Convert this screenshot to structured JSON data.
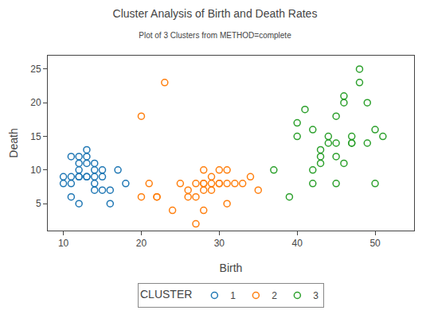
{
  "chart_data": {
    "type": "scatter",
    "title": "Cluster Analysis of Birth and Death Rates",
    "subtitle": "Plot of 3 Clusters from METHOD=complete",
    "xlabel": "Birth",
    "ylabel": "Death",
    "xlim": [
      8,
      55
    ],
    "ylim": [
      1,
      27
    ],
    "xticks": [
      10,
      20,
      30,
      40,
      50
    ],
    "yticks": [
      5,
      10,
      15,
      20,
      25
    ],
    "grid": false,
    "legend": "bottom",
    "legend_title": "CLUSTER",
    "marker": "circle-open",
    "series": [
      {
        "name": "1",
        "x": [
          10,
          10,
          11,
          11,
          11,
          12,
          12,
          12,
          12,
          12,
          13,
          13,
          13,
          13,
          14,
          14,
          14,
          14,
          14,
          15,
          15,
          15,
          16,
          16,
          17,
          18,
          11,
          12,
          13
        ],
        "values": [
          9,
          8,
          9,
          12,
          8,
          12,
          11,
          10,
          9,
          9,
          13,
          12,
          11,
          9,
          11,
          10,
          9,
          8,
          7,
          10,
          7,
          9,
          7,
          5,
          10,
          8,
          6,
          5,
          9
        ]
      },
      {
        "name": "2",
        "x": [
          20,
          21,
          22,
          22,
          23,
          24,
          25,
          26,
          27,
          27,
          28,
          28,
          28,
          28,
          29,
          29,
          29,
          30,
          30,
          30,
          31,
          31,
          31,
          32,
          33,
          34,
          35,
          20,
          26,
          27,
          28
        ],
        "values": [
          18,
          8,
          6,
          6,
          23,
          4,
          8,
          7,
          8,
          6,
          10,
          8,
          7,
          4,
          9,
          8,
          7,
          10,
          8,
          8,
          10,
          8,
          5,
          8,
          8,
          9,
          7,
          6,
          6,
          2,
          8
        ]
      },
      {
        "name": "3",
        "x": [
          37,
          39,
          40,
          40,
          41,
          42,
          42,
          43,
          43,
          44,
          44,
          45,
          45,
          45,
          46,
          46,
          47,
          47,
          48,
          48,
          49,
          49,
          50,
          50,
          51,
          42,
          43,
          45,
          46,
          47
        ],
        "values": [
          10,
          6,
          17,
          15,
          19,
          16,
          10,
          13,
          12,
          15,
          14,
          18,
          12,
          8,
          21,
          20,
          15,
          14,
          25,
          23,
          20,
          14,
          16,
          8,
          15,
          8,
          11,
          14,
          11,
          14
        ]
      }
    ]
  }
}
